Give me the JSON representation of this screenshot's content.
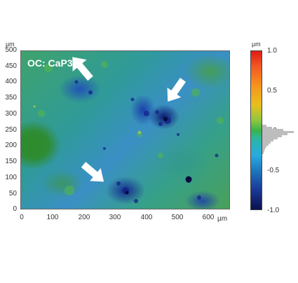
{
  "figure": {
    "title": "OC: CaP3",
    "y_unit": "µm",
    "x_unit": "µm",
    "colorbar_unit": "µm",
    "y_ticks": [
      "500",
      "450",
      "400",
      "350",
      "300",
      "250",
      "200",
      "150",
      "100",
      "50",
      "0"
    ],
    "x_ticks": [
      "0",
      "100",
      "200",
      "300",
      "400",
      "500",
      "600"
    ],
    "colorbar_ticks": [
      "1.0",
      "0.5",
      "0.0",
      "-0.5",
      "-1.0"
    ],
    "colorbar_range": [
      -1.0,
      1.0
    ],
    "colors": {
      "arrow": "#ffffff",
      "title": "#ffffff",
      "low": "#0b1050",
      "mid": "#39b54a",
      "high": "#e11b16",
      "histogram": "#bdbdbd"
    },
    "arrows": [
      "arrow-top",
      "arrow-right",
      "arrow-bottom"
    ]
  }
}
